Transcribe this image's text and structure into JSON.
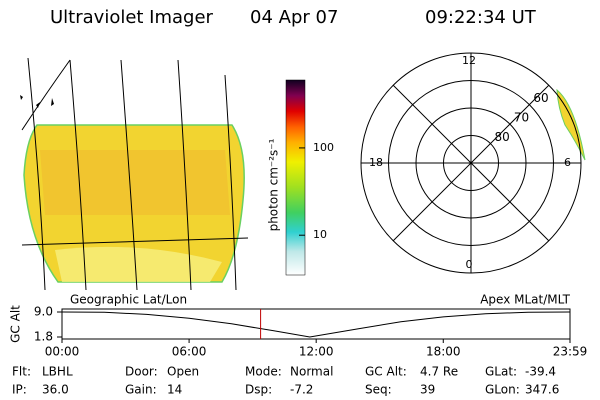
{
  "header": {
    "title": "Ultraviolet Imager",
    "date": "04 Apr 07",
    "time": "09:22:34 UT"
  },
  "colorbar": {
    "label": "photon cm⁻²s⁻¹",
    "log": true,
    "lim": [
      3.5,
      600
    ],
    "ticks": [
      10,
      100
    ]
  },
  "polar": {
    "mlt_ticks": [
      12,
      18,
      6,
      0
    ],
    "mlat_lim": [
      90,
      50
    ],
    "mlat_ticks": [
      80,
      70,
      60
    ]
  },
  "chart_data": {
    "type": "line",
    "ylabel": "GC Alt",
    "left_label": "Geographic Lat/Lon",
    "right_label": "Apex MLat/MLT",
    "x": [
      0,
      2,
      4,
      6,
      8,
      10,
      11.7,
      14,
      16,
      18,
      20,
      22,
      23.983
    ],
    "values": [
      9.0,
      8.9,
      8.3,
      7.2,
      5.6,
      3.6,
      1.8,
      4.2,
      6.2,
      7.6,
      8.5,
      8.9,
      9.0
    ],
    "color": "#000000",
    "current_time": 9.376,
    "current_color": "#c00000",
    "xlim": [
      0,
      23.983
    ],
    "ylim": [
      1.8,
      9.0
    ],
    "xticks": [
      {
        "value": 0,
        "label": "00:00"
      },
      {
        "value": 6,
        "label": "06:00"
      },
      {
        "value": 12,
        "label": "12:00"
      },
      {
        "value": 18,
        "label": "18:00"
      },
      {
        "value": 23.983,
        "label": "23:59"
      }
    ],
    "yticks": [
      {
        "value": 9,
        "label": "9.0"
      },
      1.8
    ]
  },
  "footer": [
    [
      {
        "label": "Flt:",
        "value": "LBHL"
      },
      {
        "label": "Door:",
        "value": "Open"
      },
      {
        "label": "Mode:",
        "value": "Normal"
      },
      {
        "label": "GC Alt:",
        "value": "4.7 Re"
      },
      {
        "label": "GLat:",
        "value": "-39.4"
      }
    ],
    [
      {
        "label": "IP:",
        "value": "36.0"
      },
      {
        "label": "Gain:",
        "value": "14"
      },
      {
        "label": "Dsp:",
        "value": "-7.2"
      },
      {
        "label": "Seq:",
        "value": "39"
      },
      {
        "label": "GLon:",
        "value": "347.6"
      }
    ]
  ]
}
